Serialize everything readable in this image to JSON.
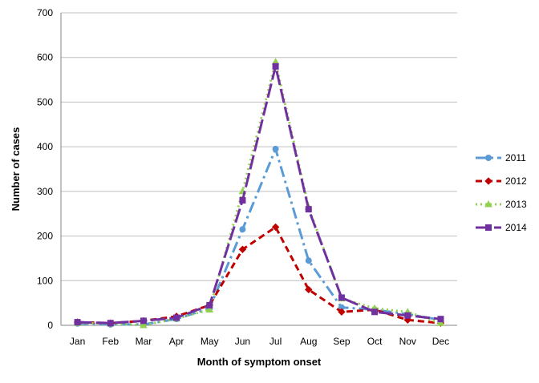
{
  "chart_data": {
    "type": "line",
    "title": "",
    "xlabel": "Month of symptom onset",
    "ylabel": "Number of cases",
    "ylim": [
      0,
      700
    ],
    "yticks": [
      0,
      100,
      200,
      300,
      400,
      500,
      600,
      700
    ],
    "grid": true,
    "legend_position": "right",
    "categories": [
      "Jan",
      "Feb",
      "Mar",
      "Apr",
      "May",
      "Jun",
      "Jul",
      "Aug",
      "Sep",
      "Oct",
      "Nov",
      "Dec"
    ],
    "series": [
      {
        "name": "2011",
        "color": "#5B9BD5",
        "marker": "circle",
        "dash": "14,5,3,5",
        "values": [
          4,
          2,
          2,
          14,
          38,
          215,
          395,
          145,
          40,
          35,
          25,
          12
        ]
      },
      {
        "name": "2012",
        "color": "#C00000",
        "marker": "diamond",
        "dash": "8,5",
        "values": [
          7,
          5,
          10,
          20,
          45,
          170,
          220,
          80,
          30,
          35,
          12,
          5
        ]
      },
      {
        "name": "2013",
        "color": "#92D050",
        "marker": "triangle",
        "dash": "2,4",
        "values": [
          5,
          4,
          0,
          15,
          35,
          300,
          590,
          265,
          60,
          38,
          30,
          5
        ]
      },
      {
        "name": "2014",
        "color": "#7030A0",
        "marker": "square",
        "dash": "18,5",
        "values": [
          7,
          5,
          10,
          17,
          45,
          280,
          580,
          260,
          62,
          30,
          22,
          14
        ]
      }
    ]
  }
}
